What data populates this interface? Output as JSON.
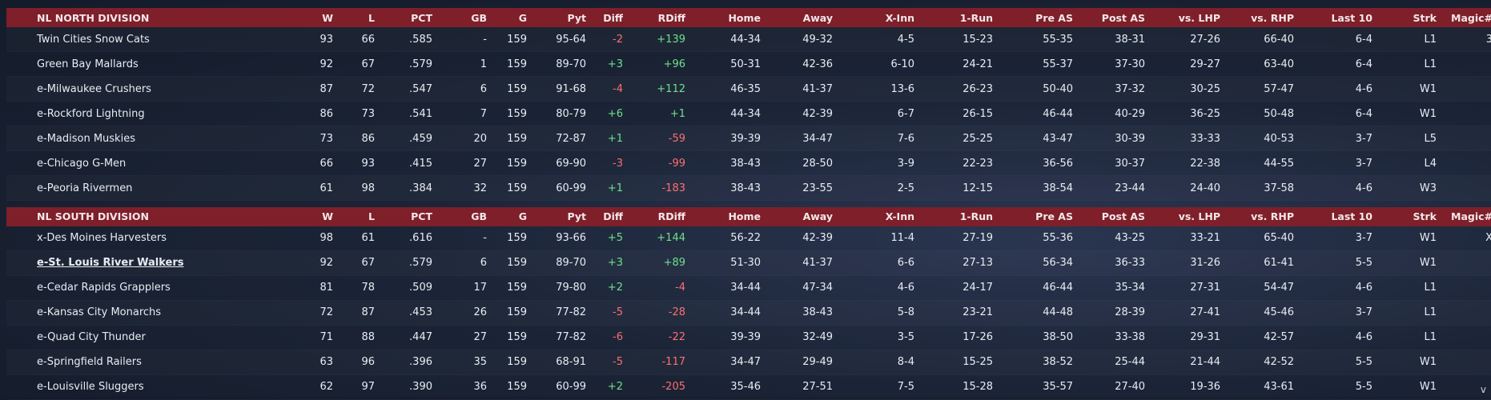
{
  "columns": [
    "W",
    "L",
    "PCT",
    "GB",
    "G",
    "Pyt",
    "Diff",
    "RDiff",
    "Home",
    "Away",
    "X-Inn",
    "1-Run",
    "Pre AS",
    "Post AS",
    "vs. LHP",
    "vs. RHP",
    "Last 10",
    "Strk",
    "Magic#"
  ],
  "divisions": [
    {
      "name": "NL NORTH DIVISION",
      "teams": [
        {
          "team": "Twin Cities Snow Cats",
          "W": "93",
          "L": "66",
          "PCT": ".585",
          "GB": "-",
          "G": "159",
          "Pyt": "95-64",
          "Diff": "-2",
          "RDiff": "+139",
          "Home": "44-34",
          "Away": "49-32",
          "XInn": "4-5",
          "OneRun": "15-23",
          "PreAS": "55-35",
          "PostAS": "38-31",
          "vsLHP": "27-26",
          "vsRHP": "66-40",
          "Last10": "6-4",
          "Strk": "L1",
          "Magic": "3"
        },
        {
          "team": "Green Bay  Mallards",
          "W": "92",
          "L": "67",
          "PCT": ".579",
          "GB": "1",
          "G": "159",
          "Pyt": "89-70",
          "Diff": "+3",
          "RDiff": "+96",
          "Home": "50-31",
          "Away": "42-36",
          "XInn": "6-10",
          "OneRun": "24-21",
          "PreAS": "55-37",
          "PostAS": "37-30",
          "vsLHP": "29-27",
          "vsRHP": "63-40",
          "Last10": "6-4",
          "Strk": "L1",
          "Magic": ""
        },
        {
          "team": "e-Milwaukee Crushers",
          "W": "87",
          "L": "72",
          "PCT": ".547",
          "GB": "6",
          "G": "159",
          "Pyt": "91-68",
          "Diff": "-4",
          "RDiff": "+112",
          "Home": "46-35",
          "Away": "41-37",
          "XInn": "13-6",
          "OneRun": "26-23",
          "PreAS": "50-40",
          "PostAS": "37-32",
          "vsLHP": "30-25",
          "vsRHP": "57-47",
          "Last10": "4-6",
          "Strk": "W1",
          "Magic": ""
        },
        {
          "team": "e-Rockford Lightning",
          "W": "86",
          "L": "73",
          "PCT": ".541",
          "GB": "7",
          "G": "159",
          "Pyt": "80-79",
          "Diff": "+6",
          "RDiff": "+1",
          "Home": "44-34",
          "Away": "42-39",
          "XInn": "6-7",
          "OneRun": "26-15",
          "PreAS": "46-44",
          "PostAS": "40-29",
          "vsLHP": "36-25",
          "vsRHP": "50-48",
          "Last10": "6-4",
          "Strk": "W1",
          "Magic": ""
        },
        {
          "team": "e-Madison Muskies",
          "W": "73",
          "L": "86",
          "PCT": ".459",
          "GB": "20",
          "G": "159",
          "Pyt": "72-87",
          "Diff": "+1",
          "RDiff": "-59",
          "Home": "39-39",
          "Away": "34-47",
          "XInn": "7-6",
          "OneRun": "25-25",
          "PreAS": "43-47",
          "PostAS": "30-39",
          "vsLHP": "33-33",
          "vsRHP": "40-53",
          "Last10": "3-7",
          "Strk": "L5",
          "Magic": ""
        },
        {
          "team": "e-Chicago G-Men",
          "W": "66",
          "L": "93",
          "PCT": ".415",
          "GB": "27",
          "G": "159",
          "Pyt": "69-90",
          "Diff": "-3",
          "RDiff": "-99",
          "Home": "38-43",
          "Away": "28-50",
          "XInn": "3-9",
          "OneRun": "22-23",
          "PreAS": "36-56",
          "PostAS": "30-37",
          "vsLHP": "22-38",
          "vsRHP": "44-55",
          "Last10": "3-7",
          "Strk": "L4",
          "Magic": ""
        },
        {
          "team": "e-Peoria Rivermen",
          "W": "61",
          "L": "98",
          "PCT": ".384",
          "GB": "32",
          "G": "159",
          "Pyt": "60-99",
          "Diff": "+1",
          "RDiff": "-183",
          "Home": "38-43",
          "Away": "23-55",
          "XInn": "2-5",
          "OneRun": "12-15",
          "PreAS": "38-54",
          "PostAS": "23-44",
          "vsLHP": "24-40",
          "vsRHP": "37-58",
          "Last10": "4-6",
          "Strk": "W3",
          "Magic": ""
        }
      ]
    },
    {
      "name": "NL SOUTH DIVISION",
      "teams": [
        {
          "team": "x-Des Moines Harvesters",
          "W": "98",
          "L": "61",
          "PCT": ".616",
          "GB": "-",
          "G": "159",
          "Pyt": "93-66",
          "Diff": "+5",
          "RDiff": "+144",
          "Home": "56-22",
          "Away": "42-39",
          "XInn": "11-4",
          "OneRun": "27-19",
          "PreAS": "55-36",
          "PostAS": "43-25",
          "vsLHP": "33-21",
          "vsRHP": "65-40",
          "Last10": "3-7",
          "Strk": "W1",
          "Magic": "X"
        },
        {
          "team": "e-St. Louis River Walkers",
          "W": "92",
          "L": "67",
          "PCT": ".579",
          "GB": "6",
          "G": "159",
          "Pyt": "89-70",
          "Diff": "+3",
          "RDiff": "+89",
          "Home": "51-30",
          "Away": "41-37",
          "XInn": "6-6",
          "OneRun": "27-13",
          "PreAS": "56-34",
          "PostAS": "36-33",
          "vsLHP": "31-26",
          "vsRHP": "61-41",
          "Last10": "5-5",
          "Strk": "W1",
          "Magic": "",
          "highlight": true
        },
        {
          "team": "e-Cedar Rapids Grapplers",
          "W": "81",
          "L": "78",
          "PCT": ".509",
          "GB": "17",
          "G": "159",
          "Pyt": "79-80",
          "Diff": "+2",
          "RDiff": "-4",
          "Home": "34-44",
          "Away": "47-34",
          "XInn": "4-6",
          "OneRun": "24-17",
          "PreAS": "46-44",
          "PostAS": "35-34",
          "vsLHP": "27-31",
          "vsRHP": "54-47",
          "Last10": "4-6",
          "Strk": "L1",
          "Magic": ""
        },
        {
          "team": "e-Kansas City Monarchs",
          "W": "72",
          "L": "87",
          "PCT": ".453",
          "GB": "26",
          "G": "159",
          "Pyt": "77-82",
          "Diff": "-5",
          "RDiff": "-28",
          "Home": "34-44",
          "Away": "38-43",
          "XInn": "5-8",
          "OneRun": "23-21",
          "PreAS": "44-48",
          "PostAS": "28-39",
          "vsLHP": "27-41",
          "vsRHP": "45-46",
          "Last10": "3-7",
          "Strk": "L1",
          "Magic": ""
        },
        {
          "team": "e-Quad City Thunder",
          "W": "71",
          "L": "88",
          "PCT": ".447",
          "GB": "27",
          "G": "159",
          "Pyt": "77-82",
          "Diff": "-6",
          "RDiff": "-22",
          "Home": "39-39",
          "Away": "32-49",
          "XInn": "3-5",
          "OneRun": "17-26",
          "PreAS": "38-50",
          "PostAS": "33-38",
          "vsLHP": "29-31",
          "vsRHP": "42-57",
          "Last10": "4-6",
          "Strk": "L1",
          "Magic": ""
        },
        {
          "team": "e-Springfield Railers",
          "W": "63",
          "L": "96",
          "PCT": ".396",
          "GB": "35",
          "G": "159",
          "Pyt": "68-91",
          "Diff": "-5",
          "RDiff": "-117",
          "Home": "34-47",
          "Away": "29-49",
          "XInn": "8-4",
          "OneRun": "15-25",
          "PreAS": "38-52",
          "PostAS": "25-44",
          "vsLHP": "21-44",
          "vsRHP": "42-52",
          "Last10": "5-5",
          "Strk": "W1",
          "Magic": ""
        },
        {
          "team": "e-Louisville Sluggers",
          "W": "62",
          "L": "97",
          "PCT": ".390",
          "GB": "36",
          "G": "159",
          "Pyt": "60-99",
          "Diff": "+2",
          "RDiff": "-205",
          "Home": "35-46",
          "Away": "27-51",
          "XInn": "7-5",
          "OneRun": "15-28",
          "PreAS": "35-57",
          "PostAS": "27-40",
          "vsLHP": "19-36",
          "vsRHP": "43-61",
          "Last10": "5-5",
          "Strk": "W1",
          "Magic": ""
        }
      ]
    }
  ],
  "colors": {
    "header_bg": "#7e1f2a",
    "positive": "#6fe08a",
    "negative": "#ff6e6e"
  },
  "scroll_icon": "chevron-down-icon",
  "scroll_glyph": "v"
}
